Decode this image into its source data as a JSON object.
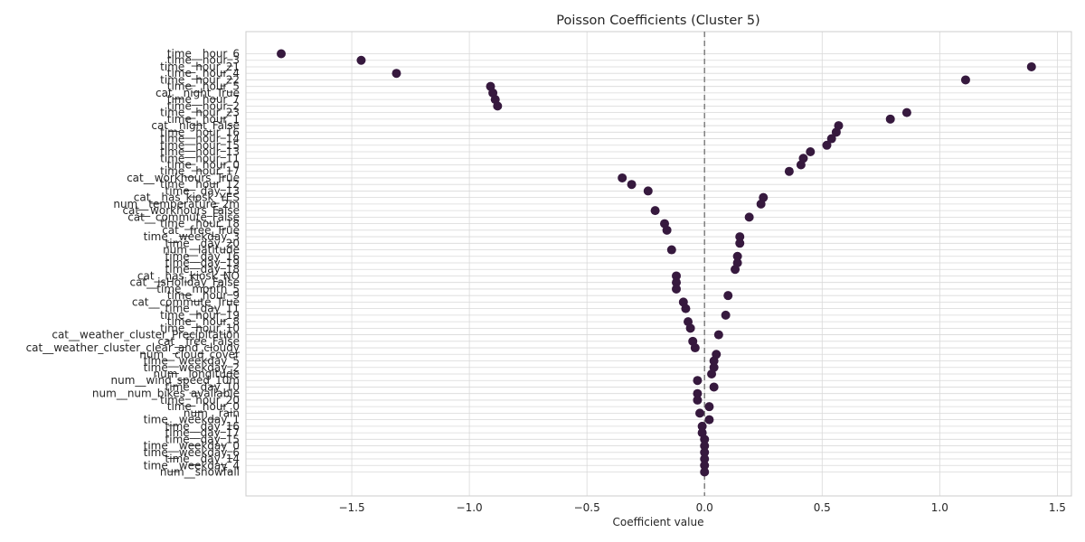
{
  "chart_data": {
    "type": "scatter",
    "title": "Poisson Coefficients (Cluster 5)",
    "xlabel": "Coefficient value",
    "ylabel": "",
    "xlim": [
      -1.95,
      1.56
    ],
    "xticks": [
      -1.5,
      -1.0,
      -0.5,
      0.0,
      0.5,
      1.0,
      1.5
    ],
    "xtick_labels": [
      "−1.5",
      "−1.0",
      "−0.5",
      "0.0",
      "0.5",
      "1.0",
      "1.5"
    ],
    "grid": true,
    "reference_line": 0,
    "marker_color": "#36193e",
    "zero_line_color": "#808080",
    "categories": [
      "time__hour_6",
      "time__hour_3",
      "time__hour_21",
      "time__hour_4",
      "time__hour_22",
      "time__hour_5",
      "cat__night_True",
      "time__hour_7",
      "time__hour_2",
      "time__hour_23",
      "time__hour_1",
      "cat__night_False",
      "time__hour_16",
      "time__hour_14",
      "time__hour_15",
      "time__hour_13",
      "time__hour_11",
      "time__hour_0",
      "time__hour_17",
      "cat__workhours_True",
      "time__hour_12",
      "time__day_13",
      "cat__has_kiosk_YES",
      "num__temperature_2m",
      "cat__workhours_False",
      "cat__commute_False",
      "time__hour_18",
      "cat__free_True",
      "time__weekday_3",
      "time__day_20",
      "num__latitude",
      "time__day_16",
      "time__day_19",
      "time__day_18",
      "cat__has_kiosk_NO",
      "cat__isHoliday_False",
      "time__month_5",
      "time__hour_9",
      "cat__commute_True",
      "time__day_11",
      "time__hour_19",
      "time__hour_8",
      "time__hour_10",
      "cat__weather_cluster_Precipitation",
      "cat__free_False",
      "cat__weather_cluster_clear_and_cloudy",
      "num__cloud_cover",
      "time__weekday_5",
      "time__weekday_2",
      "num__longitude",
      "num__wind_speed_10m",
      "time__day_10",
      "num__num_bikes_available",
      "time__hour_20",
      "time__hour_0",
      "num__rain",
      "time__weekday_1",
      "time__day_16",
      "time__day_17",
      "time__day_15",
      "time__weekday_0",
      "time__weekday_6",
      "time__day_14",
      "time__weekday_4",
      "num__snowfall"
    ],
    "values": [
      -1.8,
      -1.46,
      1.39,
      -1.31,
      1.11,
      -0.91,
      -0.9,
      -0.89,
      -0.88,
      0.86,
      0.79,
      0.57,
      0.56,
      0.54,
      0.52,
      0.45,
      0.42,
      0.41,
      0.36,
      -0.35,
      -0.31,
      -0.24,
      0.25,
      0.24,
      -0.21,
      0.19,
      -0.17,
      -0.16,
      0.15,
      0.15,
      -0.14,
      0.14,
      0.14,
      0.13,
      -0.12,
      -0.12,
      -0.12,
      0.1,
      -0.09,
      -0.08,
      0.09,
      -0.07,
      -0.06,
      0.06,
      -0.05,
      -0.04,
      0.05,
      0.04,
      0.04,
      0.03,
      -0.03,
      0.04,
      -0.03,
      -0.03,
      0.02,
      -0.02,
      0.02,
      -0.01,
      -0.01,
      0.0,
      0.0,
      0.0,
      0.0,
      0.0,
      0.0
    ]
  }
}
